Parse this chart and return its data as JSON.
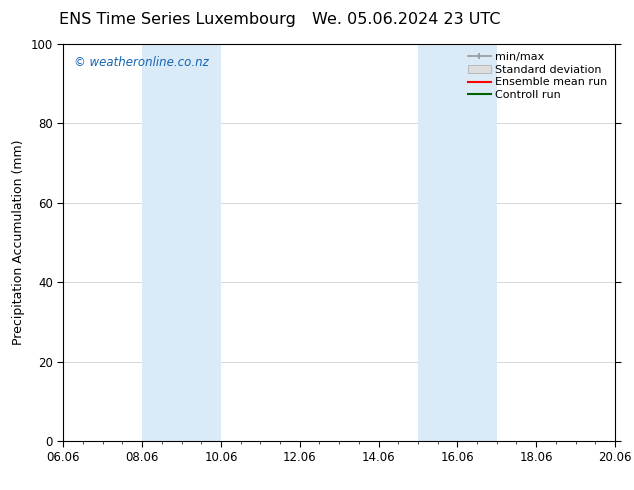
{
  "title_left": "ENS Time Series Luxembourg",
  "title_right": "We. 05.06.2024 23 UTC",
  "ylabel": "Precipitation Accumulation (mm)",
  "ylim": [
    0,
    100
  ],
  "yticks": [
    0,
    20,
    40,
    60,
    80,
    100
  ],
  "xtick_labels": [
    "06.06",
    "08.06",
    "10.06",
    "12.06",
    "14.06",
    "16.06",
    "18.06",
    "20.06"
  ],
  "xtick_positions": [
    0,
    2,
    4,
    6,
    8,
    10,
    12,
    14
  ],
  "watermark": "© weatheronline.co.nz",
  "watermark_color": "#1464b4",
  "shaded_regions": [
    {
      "x_start": 2,
      "x_end": 4,
      "color": "#daeaf7",
      "alpha": 1.0
    },
    {
      "x_start": 9.0,
      "x_end": 11.0,
      "color": "#daeaf7",
      "alpha": 1.0
    }
  ],
  "legend_items": [
    {
      "label": "min/max",
      "color": "#999999",
      "style": "minmax"
    },
    {
      "label": "Standard deviation",
      "color": "#cccccc",
      "style": "stddev"
    },
    {
      "label": "Ensemble mean run",
      "color": "#ff0000",
      "style": "line"
    },
    {
      "label": "Controll run",
      "color": "#006400",
      "style": "line"
    }
  ],
  "background_color": "#ffffff",
  "grid_color": "#c8c8c8",
  "title_fontsize": 11.5,
  "ylabel_fontsize": 9,
  "tick_fontsize": 8.5,
  "legend_fontsize": 8
}
